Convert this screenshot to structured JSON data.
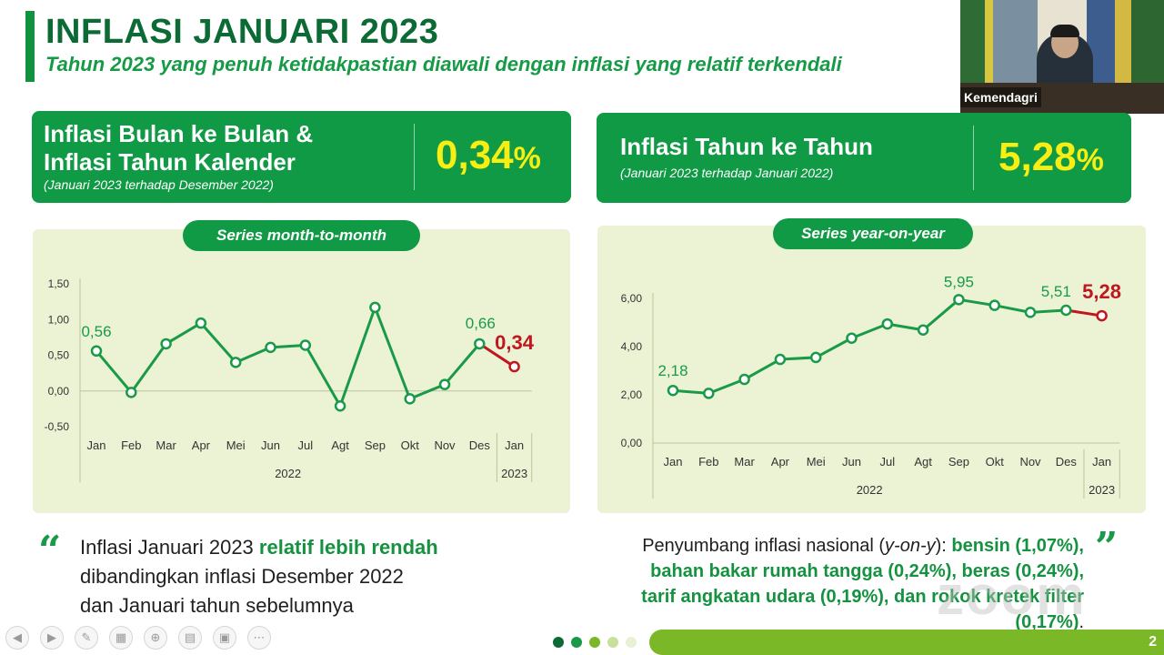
{
  "header": {
    "title": "INFLASI JANUARI 2023",
    "subtitle": "Tahun 2023 yang penuh ketidakpastian diawali dengan inflasi yang relatif terkendali"
  },
  "video": {
    "name": "Kemendagri"
  },
  "card_mtm": {
    "title_line1": "Inflasi Bulan ke Bulan &",
    "title_line2": "Inflasi Tahun Kalender",
    "note": "(Januari 2023 terhadap Desember 2022)",
    "value": "0,34",
    "unit": "%"
  },
  "card_yoy": {
    "title": "Inflasi Tahun ke Tahun",
    "note": "(Januari 2023 terhadap Januari 2022)",
    "value": "5,28",
    "unit": "%"
  },
  "chart_data": [
    {
      "type": "line",
      "title": "Series month-to-month",
      "categories": [
        "Jan",
        "Feb",
        "Mar",
        "Apr",
        "Mei",
        "Jun",
        "Jul",
        "Agt",
        "Sep",
        "Okt",
        "Nov",
        "Des",
        "Jan"
      ],
      "year_labels": [
        "2022",
        "2023"
      ],
      "y_ticks": [
        "1,50",
        "1,00",
        "0,50",
        "0,00",
        "-0,50"
      ],
      "ylim": [
        -0.5,
        1.5
      ],
      "series": [
        {
          "values": [
            0.56,
            -0.02,
            0.66,
            0.95,
            0.4,
            0.61,
            0.64,
            -0.21,
            1.17,
            -0.11,
            0.09,
            0.66,
            0.34
          ]
        }
      ],
      "data_labels": [
        {
          "index": 0,
          "text": "0,56"
        },
        {
          "index": 11,
          "text": "0,66"
        },
        {
          "index": 12,
          "text": "0,34"
        }
      ],
      "colors": {
        "line": "#1a9a48",
        "last": "#c0161f"
      }
    },
    {
      "type": "line",
      "title": "Series year-on-year",
      "categories": [
        "Jan",
        "Feb",
        "Mar",
        "Apr",
        "Mei",
        "Jun",
        "Jul",
        "Agt",
        "Sep",
        "Okt",
        "Nov",
        "Des",
        "Jan"
      ],
      "year_labels": [
        "2022",
        "2023"
      ],
      "y_ticks": [
        "6,00",
        "4,00",
        "2,00",
        "0,00"
      ],
      "ylim": [
        0,
        6
      ],
      "series": [
        {
          "values": [
            2.18,
            2.06,
            2.64,
            3.47,
            3.55,
            4.35,
            4.94,
            4.69,
            5.95,
            5.71,
            5.42,
            5.51,
            5.28
          ]
        }
      ],
      "data_labels": [
        {
          "index": 0,
          "text": "2,18"
        },
        {
          "index": 8,
          "text": "5,95"
        },
        {
          "index": 11,
          "text": "5,51"
        },
        {
          "index": 12,
          "text": "5,28"
        }
      ],
      "colors": {
        "line": "#1a9a48",
        "last": "#c0161f"
      }
    }
  ],
  "quote_left": {
    "part1": "Inflasi Januari 2023 ",
    "highlight": "relatif lebih rendah",
    "line2": "dibandingkan inflasi Desember 2022",
    "line3": "dan Januari tahun sebelumnya"
  },
  "quote_right": {
    "lead": "Penyumbang inflasi nasional (",
    "lead_italic": "y-on-y",
    "lead_end": "): ",
    "hl1": "bensin (1,07%),",
    "hl2": "bahan bakar rumah tangga (0,24%), beras (0,24%),",
    "hl3": "tarif angkatan udara (0,19%), dan rokok kretek filter",
    "hl4": "(0,17%)",
    "end": "."
  },
  "footer": {
    "page": "2"
  },
  "watermark": "zoom"
}
